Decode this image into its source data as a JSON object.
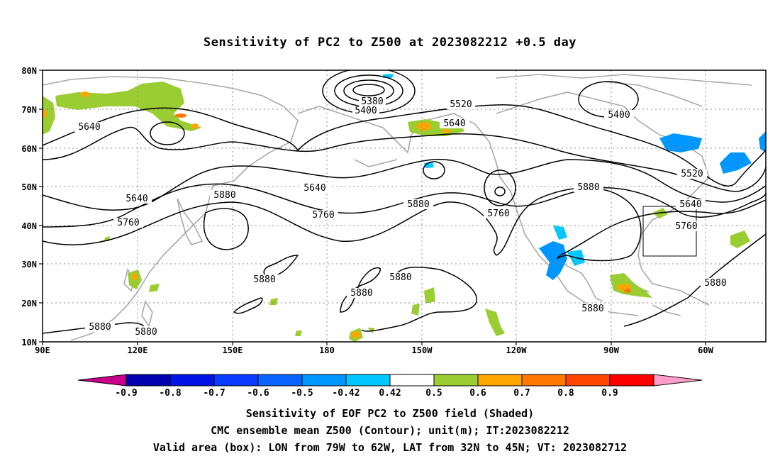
{
  "title": "Sensitivity of PC2 to Z500 at 2023082212 +0.5 day",
  "lat_labels": [
    "80N",
    "70N",
    "60N",
    "50N",
    "40N",
    "30N",
    "20N",
    "10N"
  ],
  "lon_labels": [
    "90E",
    "120E",
    "150E",
    "180",
    "150W",
    "120W",
    "90W",
    "60W"
  ],
  "contour_labels": [
    {
      "text": "5380"
    },
    {
      "text": "5400"
    },
    {
      "text": "5520"
    },
    {
      "text": "5640"
    },
    {
      "text": "5400"
    },
    {
      "text": "5640"
    },
    {
      "text": "5640"
    },
    {
      "text": "5520"
    },
    {
      "text": "5640"
    },
    {
      "text": "5640"
    },
    {
      "text": "5880"
    },
    {
      "text": "5880"
    },
    {
      "text": "5760"
    },
    {
      "text": "5760"
    },
    {
      "text": "5880"
    },
    {
      "text": "5760"
    },
    {
      "text": "5760"
    },
    {
      "text": "5880"
    },
    {
      "text": "5880"
    },
    {
      "text": "5880"
    },
    {
      "text": "5880"
    },
    {
      "text": "5880"
    },
    {
      "text": "5880"
    },
    {
      "text": "5880"
    }
  ],
  "colorbar": {
    "levels": [
      "-0.9",
      "-0.8",
      "-0.7",
      "-0.6",
      "-0.5",
      "-0.42",
      "0.42",
      "0.5",
      "0.6",
      "0.7",
      "0.8",
      "0.9"
    ],
    "colors": [
      "#0000b0",
      "#0014e6",
      "#0a3cff",
      "#0a64ff",
      "#0096ff",
      "#00c8ff",
      "#ffffff",
      "#9acd32",
      "#ffa500",
      "#ff7800",
      "#ff4500",
      "#ff0000"
    ],
    "low_extend_color": "#c8008c",
    "high_extend_color": "#ff9ec8"
  },
  "captions": [
    "Sensitivity of EOF PC2 to Z500 field (Shaded)",
    "CMC ensemble mean Z500 (Contour); unit(m); IT:2023082212",
    "Valid area (box): LON from 79W to 62W, LAT from 32N to 45N; VT: 2023082712"
  ]
}
